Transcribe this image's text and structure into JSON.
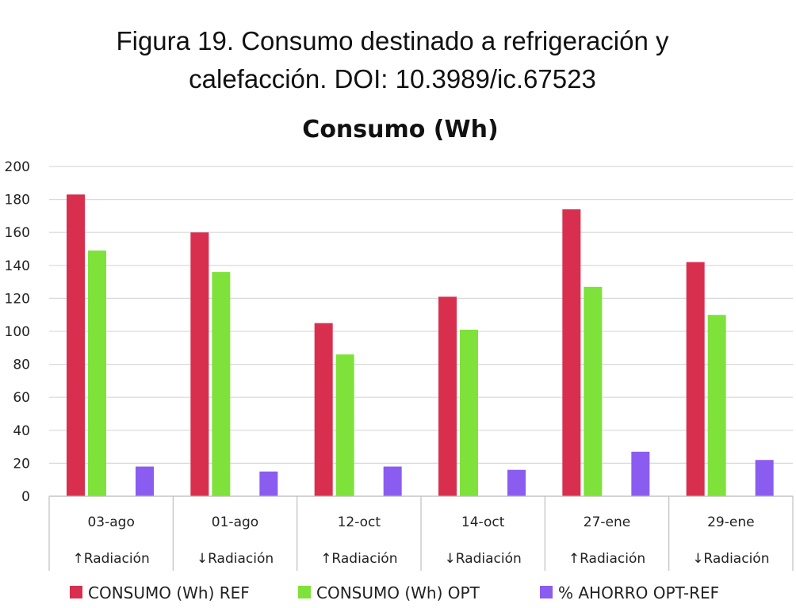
{
  "figure_caption": {
    "line1": "Figura 19. Consumo destinado a refrigeración y",
    "line2": "calefacción. DOI: 10.3989/ic.67523"
  },
  "chart_data": {
    "type": "bar",
    "title": "Consumo (Wh)",
    "xlabel": "",
    "ylabel": "",
    "ylim": [
      0,
      200
    ],
    "yticks": [
      0,
      20,
      40,
      60,
      80,
      100,
      120,
      140,
      160,
      180,
      200
    ],
    "grid": true,
    "legend_position": "bottom",
    "categories": [
      "03-ago",
      "01-ago",
      "12-oct",
      "14-oct",
      "27-ene",
      "29-ene"
    ],
    "subcategories": [
      "↑Radiación",
      "↓Radiación",
      "↑Radiación",
      "↓Radiación",
      "↑Radiación",
      "↓Radiación"
    ],
    "series": [
      {
        "name": "CONSUMO (Wh) REF",
        "color": "#d92f4e",
        "values": [
          183,
          160,
          105,
          121,
          174,
          142
        ]
      },
      {
        "name": "CONSUMO (Wh) OPT",
        "color": "#7ee23a",
        "values": [
          149,
          136,
          86,
          101,
          127,
          110
        ]
      },
      {
        "name": "% AHORRO OPT-REF",
        "color": "#8b5cf0",
        "values": [
          18,
          15,
          18,
          16,
          27,
          22
        ]
      }
    ]
  }
}
